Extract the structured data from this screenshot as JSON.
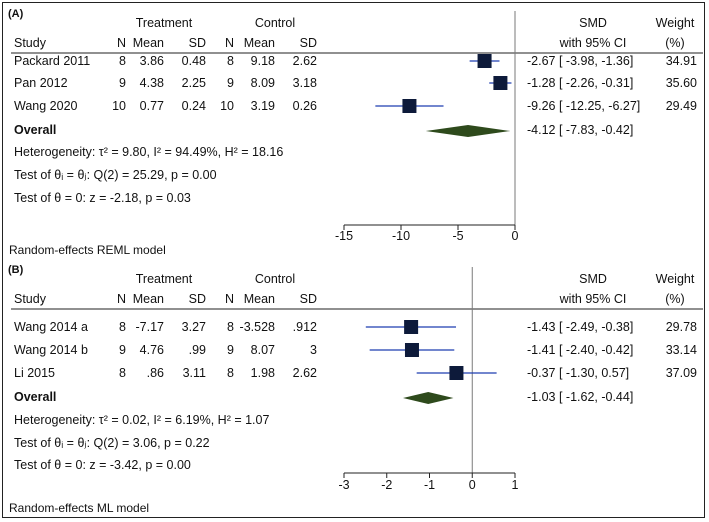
{
  "chart_data": [
    {
      "type": "forest",
      "panel": "(A)",
      "group_headers": [
        "Treatment",
        "Control"
      ],
      "columns": [
        "Study",
        "N",
        "Mean",
        "SD",
        "N",
        "Mean",
        "SD"
      ],
      "effect_header": [
        "SMD",
        "with 95% CI"
      ],
      "weight_header": [
        "Weight",
        "(%)"
      ],
      "studies": [
        {
          "name": "Packard 2011",
          "t_n": "8",
          "t_mean": "3.86",
          "t_sd": "0.48",
          "c_n": "8",
          "c_mean": "9.18",
          "c_sd": "2.62",
          "smd": -2.67,
          "lo": -3.98,
          "hi": -1.36,
          "ci_text": "-2.67 [  -3.98,  -1.36]",
          "weight": "34.91"
        },
        {
          "name": "Pan 2012",
          "t_n": "9",
          "t_mean": "4.38",
          "t_sd": "2.25",
          "c_n": "9",
          "c_mean": "8.09",
          "c_sd": "3.18",
          "smd": -1.28,
          "lo": -2.26,
          "hi": -0.31,
          "ci_text": "-1.28 [  -2.26,  -0.31]",
          "weight": "35.60"
        },
        {
          "name": "Wang 2020",
          "t_n": "10",
          "t_mean": "0.77",
          "t_sd": "0.24",
          "c_n": "10",
          "c_mean": "3.19",
          "c_sd": "0.26",
          "smd": -9.26,
          "lo": -12.25,
          "hi": -6.27,
          "ci_text": "-9.26 [ -12.25,  -6.27]",
          "weight": "29.49"
        }
      ],
      "overall": {
        "label": "Overall",
        "smd": -4.12,
        "lo": -7.83,
        "hi": -0.42,
        "ci_text": "-4.12 [  -7.83,  -0.42]"
      },
      "heterogeneity": "Heterogeneity: τ² = 9.80, I² = 94.49%, H² = 18.16",
      "test_theta_eq": "Test of θᵢ = θⱼ: Q(2) = 25.29, p = 0.00",
      "test_theta_zero": "Test of θ = 0: z = -2.18, p = 0.03",
      "xlim": [
        -15,
        0
      ],
      "ticks": [
        -15,
        -10,
        -5,
        0
      ],
      "tick_labels": [
        "-15",
        "-10",
        "-5",
        "0"
      ],
      "model": "Random-effects REML model"
    },
    {
      "type": "forest",
      "panel": "(B)",
      "group_headers": [
        "Treatment",
        "Control"
      ],
      "columns": [
        "Study",
        "N",
        "Mean",
        "SD",
        "N",
        "Mean",
        "SD"
      ],
      "effect_header": [
        "SMD",
        "with 95% CI"
      ],
      "weight_header": [
        "Weight",
        "(%)"
      ],
      "studies": [
        {
          "name": "Wang 2014 a",
          "t_n": "8",
          "t_mean": "-7.17",
          "t_sd": "3.27",
          "c_n": "8",
          "c_mean": "-3.528",
          "c_sd": ".912",
          "smd": -1.43,
          "lo": -2.49,
          "hi": -0.38,
          "ci_text": "-1.43 [ -2.49, -0.38]",
          "weight": "29.78"
        },
        {
          "name": "Wang 2014 b",
          "t_n": "9",
          "t_mean": "4.76",
          "t_sd": ".99",
          "c_n": "9",
          "c_mean": "8.07",
          "c_sd": "3",
          "smd": -1.41,
          "lo": -2.4,
          "hi": -0.42,
          "ci_text": "-1.41 [ -2.40, -0.42]",
          "weight": "33.14"
        },
        {
          "name": "Li 2015",
          "t_n": "8",
          "t_mean": ".86",
          "t_sd": "3.11",
          "c_n": "8",
          "c_mean": "1.98",
          "c_sd": "2.62",
          "smd": -0.37,
          "lo": -1.3,
          "hi": 0.57,
          "ci_text": "-0.37 [ -1.30,  0.57]",
          "weight": "37.09"
        }
      ],
      "overall": {
        "label": "Overall",
        "smd": -1.03,
        "lo": -1.62,
        "hi": -0.44,
        "ci_text": "-1.03 [ -1.62, -0.44]"
      },
      "heterogeneity": "Heterogeneity: τ² = 0.02, I² = 6.19%, H² = 1.07",
      "test_theta_eq": "Test of θᵢ = θⱼ: Q(2) = 3.06, p = 0.22",
      "test_theta_zero": "Test of θ = 0: z = -3.42, p = 0.00",
      "xlim": [
        -3,
        1
      ],
      "ticks": [
        -3,
        -2,
        -1,
        0,
        1
      ],
      "tick_labels": [
        "-3",
        "-2",
        "-1",
        "0",
        "1"
      ],
      "model": "Random-effects ML model"
    }
  ],
  "colors": {
    "marker": "#0d1a3a",
    "diamond": "#2e4a1c",
    "ci_line": "#1f3fb0",
    "axis": "#7a7a7a"
  }
}
